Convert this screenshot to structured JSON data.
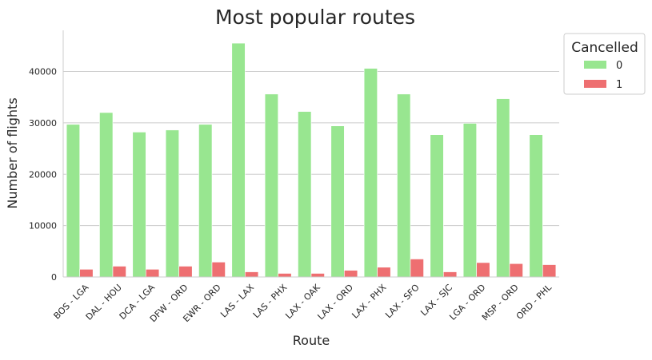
{
  "chart_data": {
    "type": "bar",
    "title": "Most popular routes",
    "xlabel": "Route",
    "ylabel": "Number of flights",
    "ylim": [
      0,
      48000
    ],
    "yticks": [
      0,
      10000,
      20000,
      30000,
      40000
    ],
    "grid": "horizontal",
    "legend": {
      "title": "Cancelled",
      "placement": "outside-top-right"
    },
    "categories": [
      "BOS - LGA",
      "DAL - HOU",
      "DCA - LGA",
      "DFW - ORD",
      "EWR - ORD",
      "LAS - LAX",
      "LAS - PHX",
      "LAX - OAK",
      "LAX - ORD",
      "LAX - PHX",
      "LAX - SFO",
      "LAX - SJC",
      "LGA - ORD",
      "MSP - ORD",
      "ORD - PHL"
    ],
    "series": [
      {
        "name": "0",
        "color": "#98e690",
        "values": [
          29700,
          32000,
          28200,
          28600,
          29700,
          45500,
          35600,
          32200,
          29400,
          40600,
          35600,
          27700,
          29900,
          34700,
          27700
        ]
      },
      {
        "name": "1",
        "color": "#ee6f71",
        "values": [
          1500,
          2100,
          1500,
          2100,
          2900,
          1000,
          700,
          700,
          1300,
          1900,
          3500,
          1000,
          2800,
          2600,
          2400
        ]
      }
    ]
  }
}
